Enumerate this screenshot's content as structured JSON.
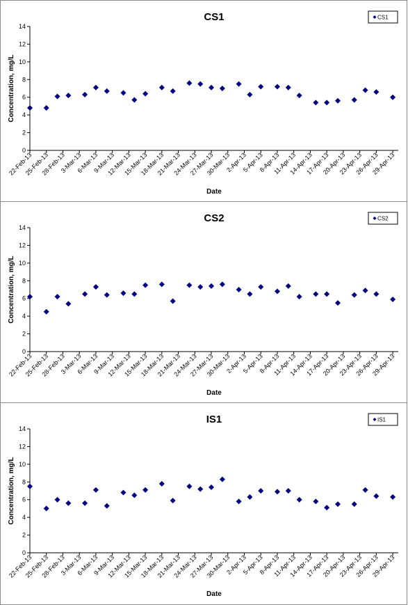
{
  "chart_data": [
    {
      "type": "scatter",
      "title": "CS1",
      "xlabel": "Date",
      "ylabel": "Concentration, mg/L",
      "ylim": [
        0,
        14
      ],
      "yticks": [
        "0",
        "2",
        "4",
        "6",
        "8",
        "10",
        "12",
        "14"
      ],
      "xlim": [
        "22-Feb-13",
        "30-Apr-13"
      ],
      "xticks": [
        "22-Feb-13",
        "25-Feb-13",
        "28-Feb-13",
        "3-Mar-13",
        "6-Mar-13",
        "9-Mar-13",
        "12-Mar-13",
        "15-Mar-13",
        "18-Mar-13",
        "21-Mar-13",
        "24-Mar-13",
        "27-Mar-13",
        "30-Mar-13",
        "2-Apr-13",
        "5-Apr-13",
        "8-Apr-13",
        "11-Apr-13",
        "14-Apr-13",
        "17-Apr-13",
        "20-Apr-13",
        "23-Apr-13",
        "26-Apr-13",
        "29-Apr-13"
      ],
      "grid": false,
      "legend_position": "top-right",
      "series": [
        {
          "name": "CS1",
          "color": "#000080",
          "marker": "diamond",
          "x": [
            "22-Feb-13",
            "25-Feb-13",
            "27-Feb-13",
            "1-Mar-13",
            "4-Mar-13",
            "6-Mar-13",
            "8-Mar-13",
            "11-Mar-13",
            "13-Mar-13",
            "15-Mar-13",
            "18-Mar-13",
            "20-Mar-13",
            "23-Mar-13",
            "25-Mar-13",
            "27-Mar-13",
            "29-Mar-13",
            "1-Apr-13",
            "3-Apr-13",
            "5-Apr-13",
            "8-Apr-13",
            "10-Apr-13",
            "12-Apr-13",
            "15-Apr-13",
            "17-Apr-13",
            "19-Apr-13",
            "22-Apr-13",
            "24-Apr-13",
            "26-Apr-13",
            "29-Apr-13"
          ],
          "y": [
            4.8,
            4.8,
            6.1,
            6.2,
            6.3,
            7.1,
            6.7,
            6.5,
            5.7,
            6.4,
            7.1,
            6.7,
            7.6,
            7.5,
            7.1,
            7.0,
            7.5,
            6.3,
            7.2,
            7.2,
            7.1,
            6.2,
            5.4,
            5.4,
            5.6,
            5.7,
            6.8,
            6.6,
            6.0
          ]
        }
      ]
    },
    {
      "type": "scatter",
      "title": "CS2",
      "xlabel": "Date",
      "ylabel": "Concentration, mg/L",
      "ylim": [
        0,
        14
      ],
      "yticks": [
        "0",
        "2",
        "4",
        "6",
        "8",
        "10",
        "12",
        "14"
      ],
      "xlim": [
        "22-Feb-13",
        "30-Apr-13"
      ],
      "xticks": [
        "22-Feb-13",
        "25-Feb-13",
        "28-Feb-13",
        "3-Mar-13",
        "6-Mar-13",
        "9-Mar-13",
        "12-Mar-13",
        "15-Mar-13",
        "18-Mar-13",
        "21-Mar-13",
        "24-Mar-13",
        "27-Mar-13",
        "30-Mar-13",
        "2-Apr-13",
        "5-Apr-13",
        "8-Apr-13",
        "11-Apr-13",
        "14-Apr-13",
        "17-Apr-13",
        "20-Apr-13",
        "23-Apr-13",
        "26-Apr-13",
        "29-Apr-13"
      ],
      "grid": false,
      "legend_position": "top-right",
      "series": [
        {
          "name": "CS2",
          "color": "#000080",
          "marker": "diamond",
          "x": [
            "22-Feb-13",
            "25-Feb-13",
            "27-Feb-13",
            "1-Mar-13",
            "4-Mar-13",
            "6-Mar-13",
            "8-Mar-13",
            "11-Mar-13",
            "13-Mar-13",
            "15-Mar-13",
            "18-Mar-13",
            "20-Mar-13",
            "23-Mar-13",
            "25-Mar-13",
            "27-Mar-13",
            "29-Mar-13",
            "1-Apr-13",
            "3-Apr-13",
            "5-Apr-13",
            "8-Apr-13",
            "10-Apr-13",
            "12-Apr-13",
            "15-Apr-13",
            "17-Apr-13",
            "19-Apr-13",
            "22-Apr-13",
            "24-Apr-13",
            "26-Apr-13",
            "29-Apr-13"
          ],
          "y": [
            6.2,
            4.5,
            6.2,
            5.4,
            6.5,
            7.3,
            6.4,
            6.6,
            6.5,
            7.5,
            7.6,
            5.7,
            7.5,
            7.3,
            7.4,
            7.6,
            7.0,
            6.5,
            7.3,
            6.8,
            7.4,
            6.2,
            6.5,
            6.5,
            5.5,
            6.4,
            6.9,
            6.5,
            5.9
          ]
        }
      ]
    },
    {
      "type": "scatter",
      "title": "IS1",
      "xlabel": "Date",
      "ylabel": "Concentration, mg/L",
      "ylim": [
        0,
        14
      ],
      "yticks": [
        "0",
        "2",
        "4",
        "6",
        "8",
        "10",
        "12",
        "14"
      ],
      "xlim": [
        "22-Feb-13",
        "30-Apr-13"
      ],
      "xticks": [
        "22-Feb-13",
        "25-Feb-13",
        "28-Feb-13",
        "3-Mar-13",
        "6-Mar-13",
        "9-Mar-13",
        "12-Mar-13",
        "15-Mar-13",
        "18-Mar-13",
        "21-Mar-13",
        "24-Mar-13",
        "27-Mar-13",
        "30-Mar-13",
        "2-Apr-13",
        "5-Apr-13",
        "8-Apr-13",
        "11-Apr-13",
        "14-Apr-13",
        "17-Apr-13",
        "20-Apr-13",
        "23-Apr-13",
        "26-Apr-13",
        "29-Apr-13"
      ],
      "grid": false,
      "legend_position": "top-right",
      "series": [
        {
          "name": "IS1",
          "color": "#000080",
          "marker": "diamond",
          "x": [
            "22-Feb-13",
            "25-Feb-13",
            "27-Feb-13",
            "1-Mar-13",
            "4-Mar-13",
            "6-Mar-13",
            "8-Mar-13",
            "11-Mar-13",
            "13-Mar-13",
            "15-Mar-13",
            "18-Mar-13",
            "20-Mar-13",
            "23-Mar-13",
            "25-Mar-13",
            "27-Mar-13",
            "29-Mar-13",
            "1-Apr-13",
            "3-Apr-13",
            "5-Apr-13",
            "8-Apr-13",
            "10-Apr-13",
            "12-Apr-13",
            "15-Apr-13",
            "17-Apr-13",
            "19-Apr-13",
            "22-Apr-13",
            "24-Apr-13",
            "26-Apr-13",
            "29-Apr-13"
          ],
          "y": [
            7.5,
            5.0,
            6.0,
            5.6,
            5.6,
            7.1,
            5.3,
            6.8,
            6.5,
            7.1,
            7.8,
            5.9,
            7.5,
            7.2,
            7.4,
            8.3,
            5.8,
            6.3,
            7.0,
            6.9,
            7.0,
            6.0,
            5.8,
            5.1,
            5.5,
            5.5,
            7.1,
            6.4,
            6.3
          ]
        }
      ]
    }
  ]
}
